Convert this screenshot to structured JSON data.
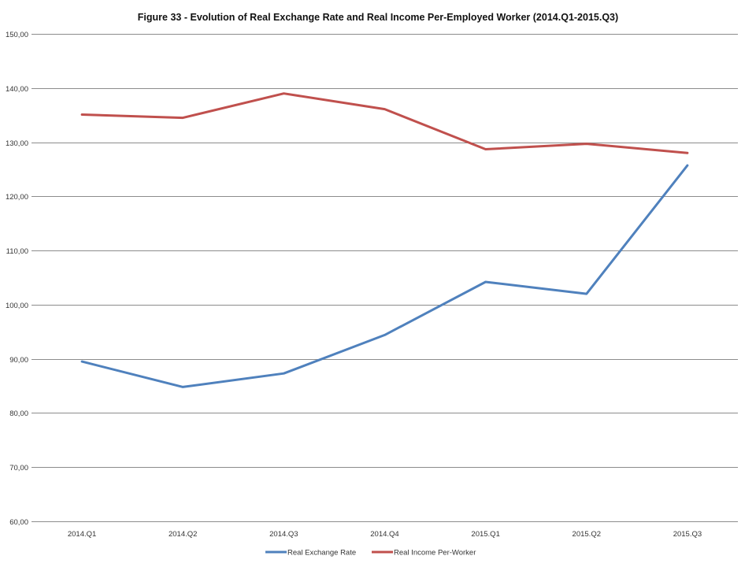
{
  "chart_data": {
    "type": "line",
    "title": "Figure 33 - Evolution of Real Exchange Rate and Real Income Per-Employed Worker (2014.Q1-2015.Q3)",
    "categories": [
      "2014.Q1",
      "2014.Q2",
      "2014.Q3",
      "2014.Q4",
      "2015.Q1",
      "2015.Q2",
      "2015.Q3"
    ],
    "y_ticks": [
      "60,00",
      "70,00",
      "80,00",
      "90,00",
      "100,00",
      "110,00",
      "120,00",
      "130,00",
      "140,00",
      "150,00"
    ],
    "ylim": [
      60,
      150
    ],
    "grid": true,
    "legend_position": "bottom",
    "series": [
      {
        "name": "Real Exchange Rate",
        "color": "#4f81bd",
        "values": [
          89.5,
          84.8,
          87.3,
          94.4,
          104.2,
          102.0,
          125.7
        ]
      },
      {
        "name": "Real Income Per-Worker",
        "color": "#c0504d",
        "values": [
          135.1,
          134.5,
          139.0,
          136.1,
          128.7,
          129.7,
          128.0
        ]
      }
    ]
  }
}
